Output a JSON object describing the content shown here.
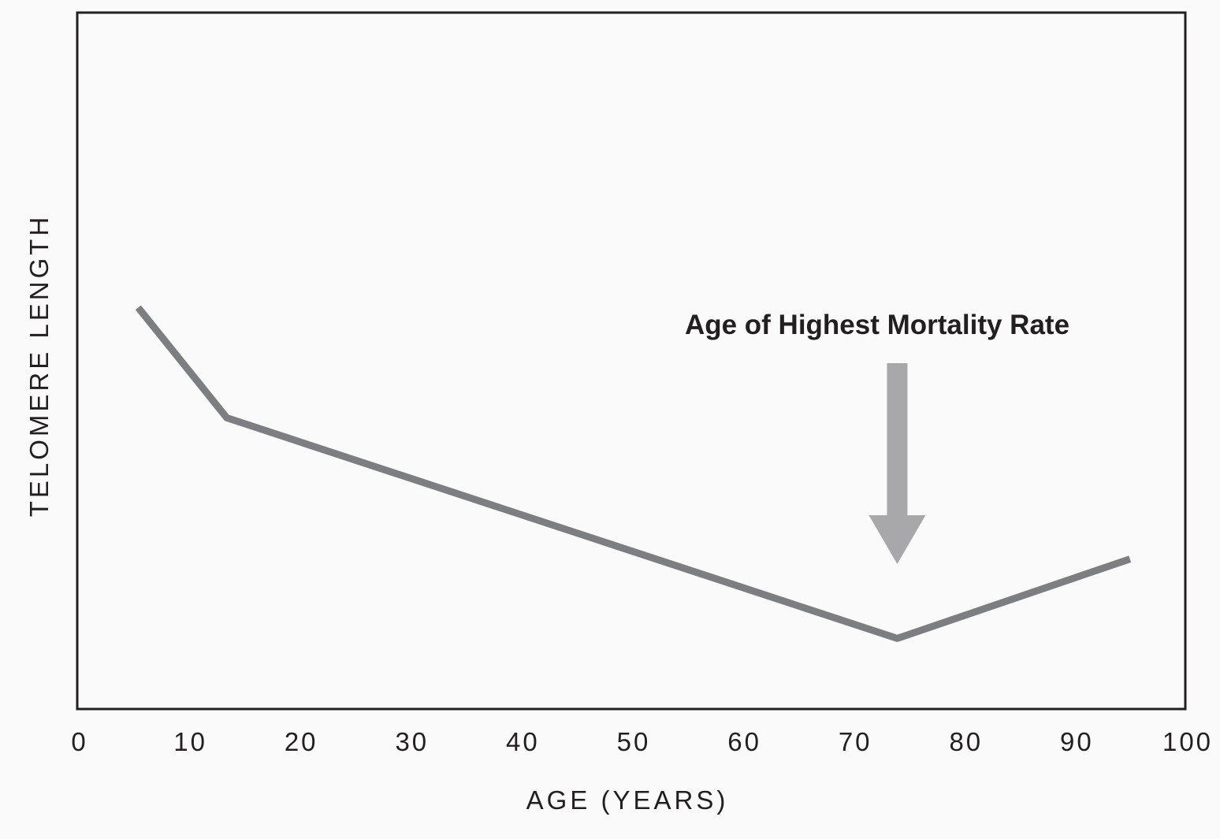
{
  "chart_data": {
    "type": "line",
    "xlabel": "AGE (YEARS)",
    "ylabel": "TELOMERE LENGTH",
    "xlim": [
      0,
      100
    ],
    "xticks": [
      "0",
      "10",
      "20",
      "30",
      "40",
      "50",
      "60",
      "70",
      "80",
      "90",
      "100"
    ],
    "y_ticks_shown": false,
    "grid": false,
    "series": [
      {
        "x": [
          5.5,
          13.5,
          74.0,
          95.0
        ],
        "y": [
          9.1,
          6.6,
          1.6,
          3.4
        ],
        "color": "#7d7e82"
      }
    ],
    "annotations": [
      {
        "text": "Age of Highest Mortality Rate",
        "x": 74,
        "arrow": "down",
        "arrow_color": "#a8a8aa"
      }
    ]
  }
}
